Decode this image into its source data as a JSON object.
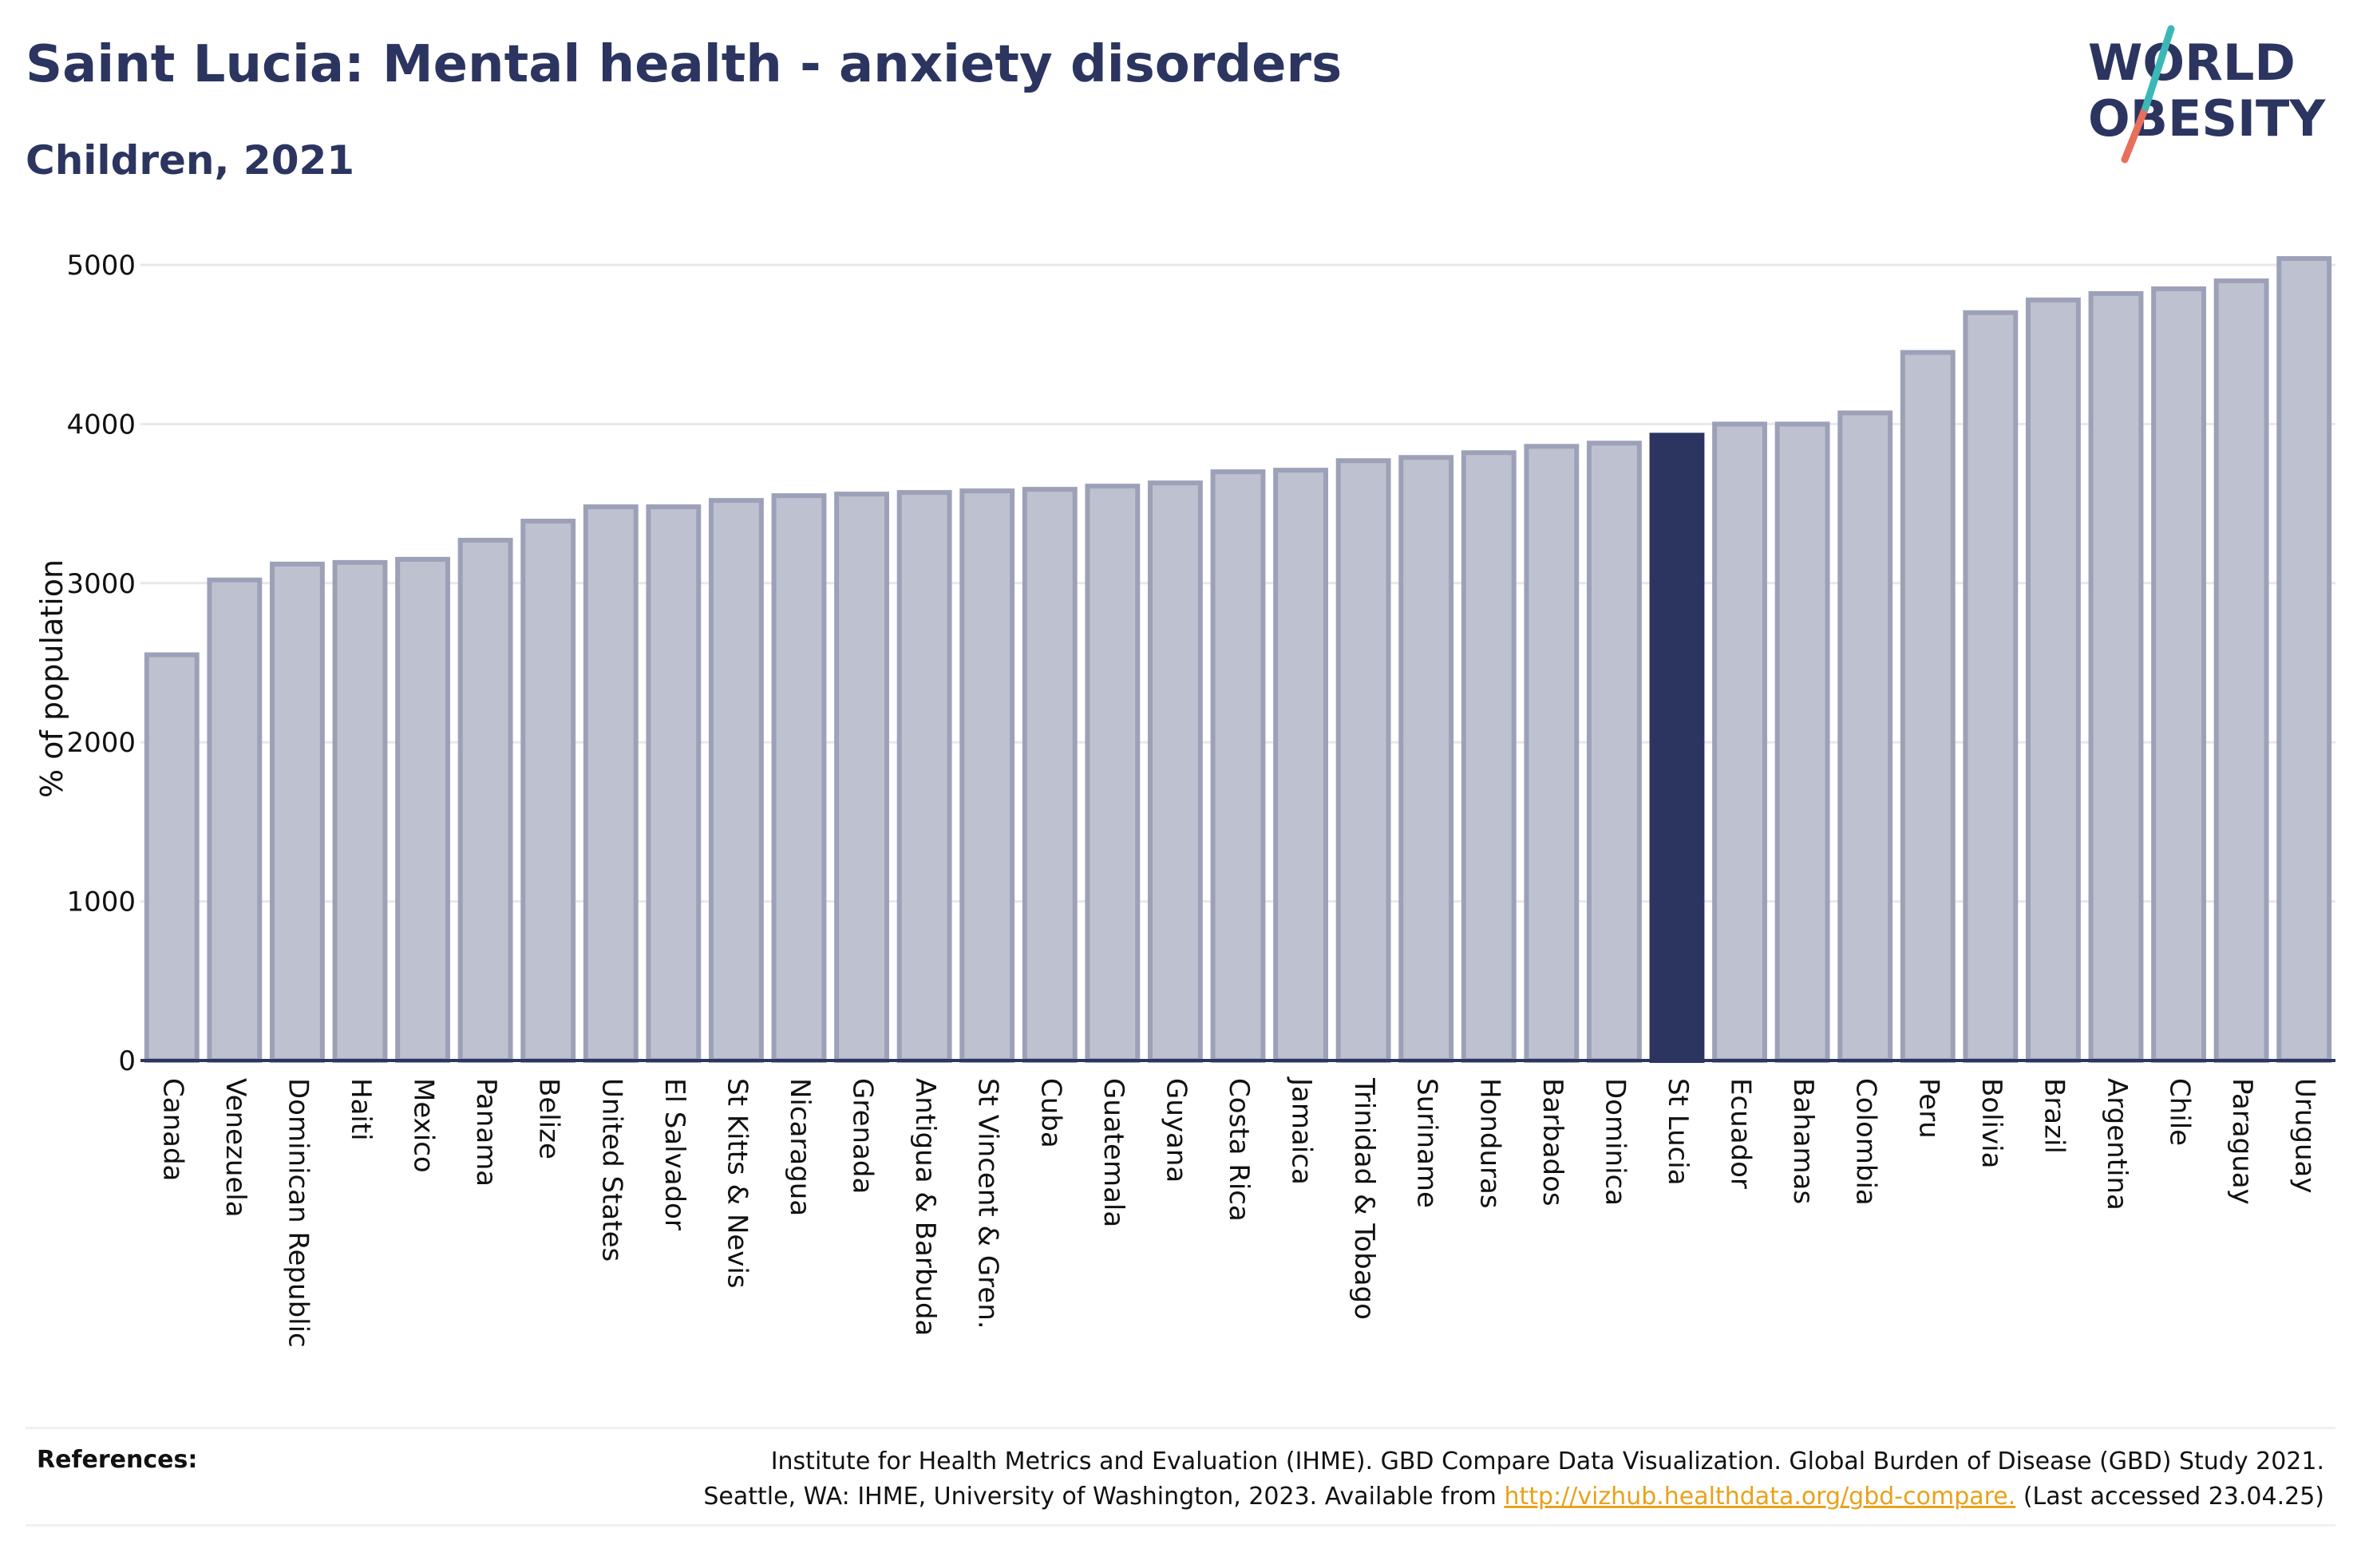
{
  "title": "Saint Lucia: Mental health - anxiety disorders",
  "subtitle": "Children, 2021",
  "logo": {
    "line1": "WORLD",
    "line2": "OBESITY"
  },
  "colors": {
    "highlight": "#2b3560",
    "bar_fill": "#bec1cf",
    "bar_stroke": "#9da1b8",
    "title": "#2b3560",
    "link": "#e8a21a",
    "logo_slash_teal": "#3bb8b6",
    "logo_slash_coral": "#e86f5b"
  },
  "chart_data": {
    "type": "bar",
    "ylabel": "% of population",
    "xlabel": "",
    "ylim": [
      0,
      5000
    ],
    "yticks": [
      0,
      1000,
      2000,
      3000,
      4000,
      5000
    ],
    "grid": true,
    "highlight": "St Lucia",
    "categories": [
      "Canada",
      "Venezuela",
      "Dominican Republic",
      "Haiti",
      "Mexico",
      "Panama",
      "Belize",
      "United States",
      "El Salvador",
      "St Kitts & Nevis",
      "Nicaragua",
      "Grenada",
      "Antigua & Barbuda",
      "St Vincent & Gren.",
      "Cuba",
      "Guatemala",
      "Guyana",
      "Costa Rica",
      "Jamaica",
      "Trinidad & Tobago",
      "Suriname",
      "Honduras",
      "Barbados",
      "Dominica",
      "St Lucia",
      "Ecuador",
      "Bahamas",
      "Colombia",
      "Peru",
      "Bolivia",
      "Brazil",
      "Argentina",
      "Chile",
      "Paraguay",
      "Uruguay"
    ],
    "values": [
      2550,
      3020,
      3120,
      3130,
      3150,
      3270,
      3390,
      3480,
      3480,
      3520,
      3550,
      3560,
      3570,
      3580,
      3590,
      3610,
      3630,
      3700,
      3710,
      3770,
      3790,
      3820,
      3860,
      3880,
      3930,
      4000,
      4000,
      4070,
      4450,
      4700,
      4780,
      4820,
      4850,
      4900,
      5040
    ]
  },
  "references": {
    "label": "References:",
    "line1": "Institute for Health Metrics and Evaluation (IHME). GBD Compare Data Visualization. Global Burden of Disease (GBD) Study 2021.",
    "line2_pre": "Seattle, WA: IHME, University of Washington, 2023. Available from ",
    "link": "http://vizhub.healthdata.org/gbd-compare.",
    "line2_post": " (Last accessed 23.04.25)"
  }
}
